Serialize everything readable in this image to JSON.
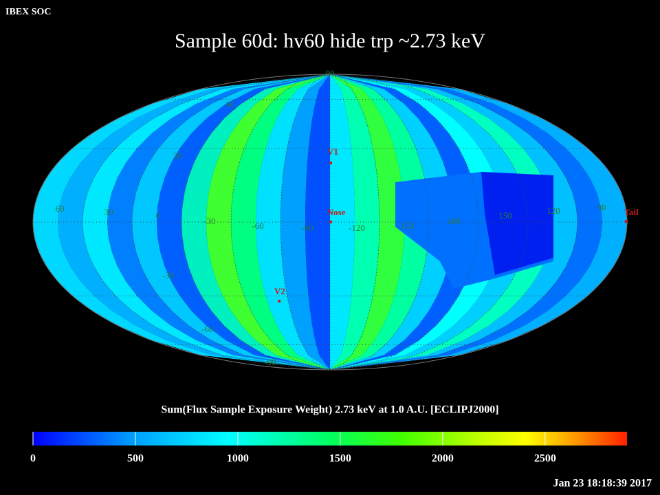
{
  "header": {
    "source": "IBEX SOC",
    "title": "Sample 60d: hv60 hide trp ~2.73 keV"
  },
  "map": {
    "grid_labels": [
      "90",
      "60",
      "30",
      "60",
      "30",
      "0",
      "-30",
      "-60",
      "-90",
      "-120",
      "-150",
      "180",
      "150",
      "120",
      "90",
      "-30",
      "-60",
      "-90"
    ],
    "markers": [
      "V1",
      "Nose",
      "V2",
      "Tail"
    ]
  },
  "colorbar": {
    "caption": "Sum(Flux Sample Exposure Weight)  2.73 keV at 1.0 A.U. [ECLIPJ2000]",
    "range": [
      0,
      2900
    ],
    "ticks": [
      0,
      500,
      1000,
      1500,
      2000,
      2500
    ]
  },
  "timestamp": "Jan 23 18:18:39 2017"
}
